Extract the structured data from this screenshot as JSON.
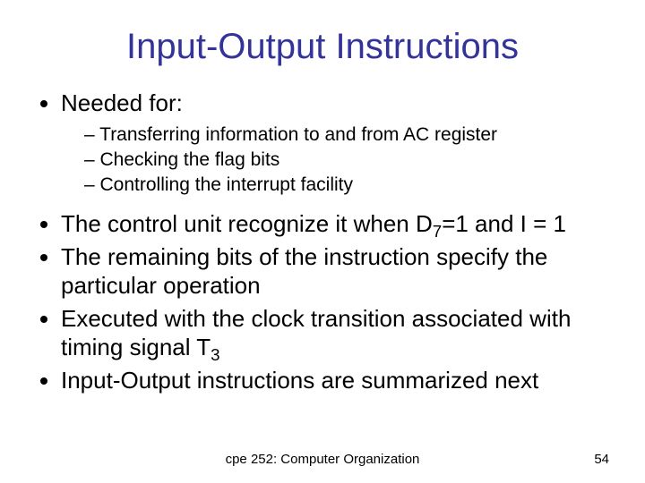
{
  "title": "Input-Output Instructions",
  "bullets": {
    "b1": "Needed for:",
    "b1_sub": {
      "s1": "Transferring information to and from AC register",
      "s2": "Checking the flag bits",
      "s3": "Controlling the interrupt facility"
    },
    "b2_pre": "The control unit recognize it when D",
    "b2_sub7": "7",
    "b2_post": "=1 and I = 1",
    "b3": "The remaining bits of the instruction specify the particular operation",
    "b4_pre": "Executed with the clock transition associated with timing signal T",
    "b4_sub3": "3",
    "b5": "Input-Output instructions are summarized next"
  },
  "footer": {
    "center": "cpe 252: Computer Organization",
    "page": "54"
  },
  "colors": {
    "title": "#333399",
    "text": "#000000",
    "background": "#ffffff"
  },
  "typography": {
    "title_fontsize": 40,
    "level1_fontsize": 26,
    "level2_fontsize": 21,
    "footer_fontsize": 15,
    "font_family": "Arial"
  }
}
